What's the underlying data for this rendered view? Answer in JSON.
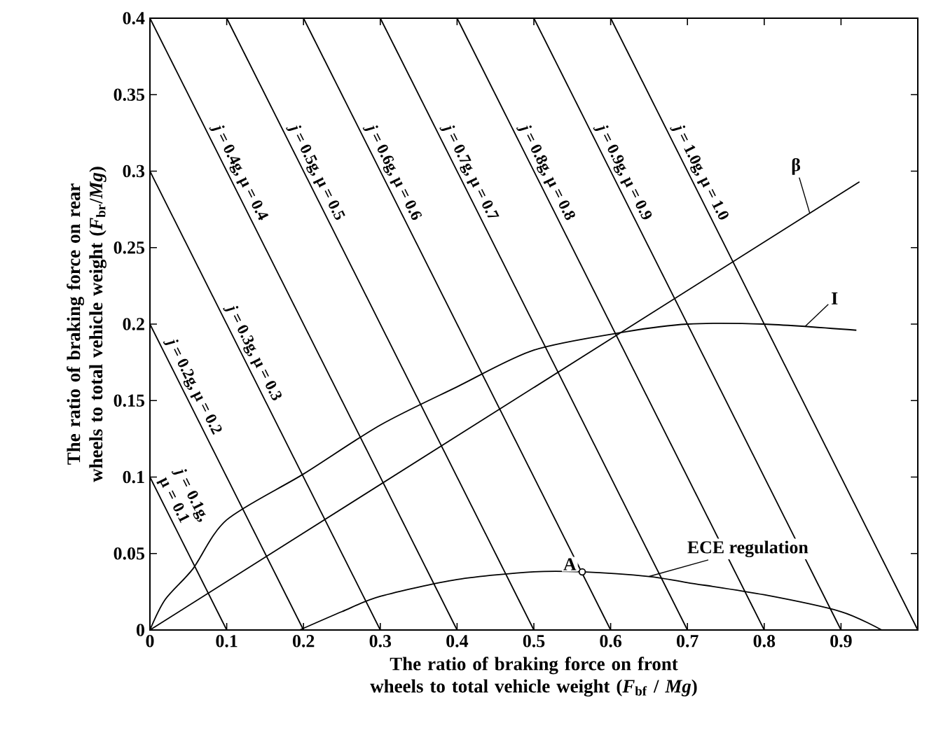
{
  "chart_data": {
    "type": "line",
    "xlabel": "The ratio of braking force on front wheels to total vehicle weight (*F*$_{bf}$ / *Mg*)",
    "ylabel": "The ratio of braking force on rear wheels to total vehicle weight (*F*$_{br}$/*Mg*)",
    "xlim": [
      0,
      1
    ],
    "ylim": [
      0,
      0.4
    ],
    "xticks": [
      0,
      0.1,
      0.2,
      0.3,
      0.4,
      0.5,
      0.6,
      0.7,
      0.8,
      0.9
    ],
    "yticks": [
      0,
      0.05,
      0.1,
      0.15,
      0.2,
      0.25,
      0.3,
      0.35,
      0.4
    ],
    "marker": "none",
    "line_style": "solid",
    "series": [
      {
        "name": "*j* = 0.1g, μ = 0.1",
        "color": "#000000",
        "x": [
          0,
          0.1
        ],
        "values": [
          0.1,
          0
        ]
      },
      {
        "name": "*j* = 0.2g, μ = 0.2",
        "color": "#000000",
        "x": [
          0,
          0.2
        ],
        "values": [
          0.2,
          0
        ]
      },
      {
        "name": "*j* = 0.3g, μ = 0.3",
        "color": "#000000",
        "x": [
          0,
          0.3
        ],
        "values": [
          0.3,
          0
        ]
      },
      {
        "name": "*j* = 0.4g, μ = 0.4",
        "color": "#000000",
        "x": [
          0,
          0.4
        ],
        "values": [
          0.4,
          0
        ]
      },
      {
        "name": "*j* = 0.5g, μ = 0.5",
        "color": "#000000",
        "x": [
          0.1,
          0.5
        ],
        "values": [
          0.4,
          0
        ]
      },
      {
        "name": "*j* = 0.6g, μ = 0.6",
        "color": "#000000",
        "x": [
          0.2,
          0.6
        ],
        "values": [
          0.4,
          0
        ]
      },
      {
        "name": "*j* = 0.7g, μ = 0.7",
        "color": "#000000",
        "x": [
          0.3,
          0.7
        ],
        "values": [
          0.4,
          0
        ]
      },
      {
        "name": "*j* = 0.8g, μ = 0.8",
        "color": "#000000",
        "x": [
          0.4,
          0.8
        ],
        "values": [
          0.4,
          0
        ]
      },
      {
        "name": "*j* = 0.9g, μ = 0.9",
        "color": "#000000",
        "x": [
          0.5,
          0.9
        ],
        "values": [
          0.4,
          0
        ]
      },
      {
        "name": "*j* = 1.0g, μ = 1.0",
        "color": "#000000",
        "x": [
          0.6,
          1.0
        ],
        "values": [
          0.4,
          0
        ]
      },
      {
        "name": "β",
        "color": "#000000",
        "x": [
          0,
          0.924
        ],
        "values": [
          0,
          0.293
        ]
      },
      {
        "name": "I",
        "color": "#000000",
        "x": [
          0,
          0.02,
          0.056,
          0.1,
          0.2,
          0.3,
          0.4,
          0.5,
          0.62,
          0.7,
          0.8,
          0.92
        ],
        "values": [
          0,
          0.02,
          0.04,
          0.072,
          0.102,
          0.134,
          0.159,
          0.183,
          0.195,
          0.2,
          0.2,
          0.196
        ]
      },
      {
        "name": "ECE regulation",
        "color": "#000000",
        "x": [
          0.195,
          0.25,
          0.3,
          0.4,
          0.5,
          0.563,
          0.65,
          0.7,
          0.8,
          0.9,
          0.953
        ],
        "values": [
          0,
          0.012,
          0.022,
          0.033,
          0.038,
          0.038,
          0.035,
          0.031,
          0.023,
          0.012,
          0
        ]
      },
      {
        "name": "A",
        "type": "scatter",
        "marker": "circle",
        "color": "#000000",
        "x": [
          0.563
        ],
        "values": [
          0.038
        ]
      }
    ]
  }
}
